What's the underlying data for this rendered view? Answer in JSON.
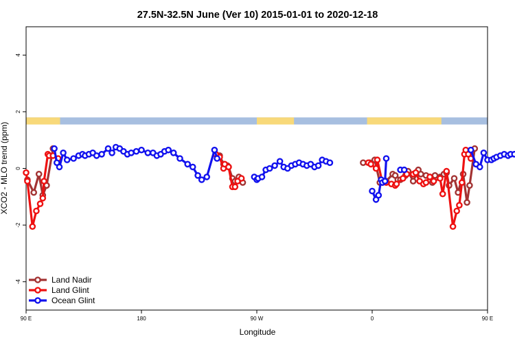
{
  "chart_data": {
    "type": "line",
    "title": "27.5N-32.5N June (Ver 10)   2015-01-01 to 2020-12-18",
    "xlabel": "Longitude",
    "ylabel": "XCO2 - MLO trend (ppm)",
    "xlim": [
      90,
      450
    ],
    "ylim": [
      -5,
      5
    ],
    "x_ticks": [
      {
        "value": 90,
        "label": "90 E"
      },
      {
        "value": 180,
        "label": "180"
      },
      {
        "value": 270,
        "label": "90 W"
      },
      {
        "value": 360,
        "label": "0"
      },
      {
        "value": 450,
        "label": "90 E"
      },
      {
        "value": 540,
        "label": "180"
      }
    ],
    "y_ticks": [
      -4,
      -2,
      0,
      2,
      4
    ],
    "land_ocean_strip": {
      "y_range": [
        1.55,
        1.8
      ],
      "land_color": "#f8d97a",
      "ocean_color": "#a7bfe0",
      "land_intervals": [
        [
          90,
          116.5
        ],
        [
          270,
          299
        ],
        [
          356,
          414
        ]
      ]
    },
    "legend": {
      "position": "bottom-left"
    },
    "series": [
      {
        "name": "Land Nadir",
        "color": "#a33333",
        "segments": [
          [
            [
              91,
              -0.4
            ],
            [
              96,
              -0.85
            ],
            [
              100,
              -0.2
            ],
            [
              103,
              -0.95
            ],
            [
              106,
              -0.6
            ],
            [
              111,
              0.7
            ]
          ],
          [
            [
              241,
              0.45
            ],
            [
              244,
              0.15
            ],
            [
              247,
              0.1
            ],
            [
              248,
              0.05
            ],
            [
              251,
              -0.35
            ],
            [
              253,
              -0.45
            ],
            [
              256,
              -0.3
            ],
            [
              259,
              -0.5
            ]
          ],
          [
            [
              353,
              0.2
            ],
            [
              358,
              0.2
            ],
            [
              362,
              0.3
            ],
            [
              366,
              -0.5
            ],
            [
              371,
              -0.45
            ],
            [
              376,
              -0.2
            ],
            [
              378,
              -0.25
            ],
            [
              380,
              -0.4
            ],
            [
              382,
              -0.4
            ],
            [
              386,
              -0.25
            ],
            [
              388,
              -0.1
            ],
            [
              392,
              -0.45
            ],
            [
              396,
              -0.05
            ],
            [
              398,
              -0.2
            ],
            [
              402,
              -0.25
            ],
            [
              405,
              -0.3
            ],
            [
              407,
              -0.5
            ],
            [
              409,
              -0.25
            ],
            [
              413,
              -0.3
            ],
            [
              416,
              -0.2
            ],
            [
              418,
              -0.15
            ],
            [
              420,
              -0.6
            ],
            [
              424,
              -0.35
            ],
            [
              427,
              -0.85
            ],
            [
              431,
              -0.2
            ],
            [
              434,
              -1.2
            ],
            [
              436,
              -0.6
            ],
            [
              440,
              0.7
            ]
          ]
        ]
      },
      {
        "name": "Land Glint",
        "color": "#ee1111",
        "segments": [
          [
            [
              90,
              -0.15
            ],
            [
              91,
              -0.45
            ],
            [
              95,
              -2.05
            ],
            [
              98,
              -1.5
            ],
            [
              101,
              -1.25
            ],
            [
              103,
              -1.05
            ],
            [
              104,
              -0.45
            ],
            [
              107,
              0.5
            ],
            [
              108,
              0.45
            ],
            [
              111,
              0.45
            ],
            [
              115,
              0.35
            ]
          ],
          [
            [
              238,
              0.5
            ],
            [
              241,
              0.4
            ],
            [
              244,
              0.0
            ],
            [
              245,
              0.15
            ],
            [
              248,
              0.05
            ],
            [
              251,
              -0.65
            ],
            [
              253,
              -0.65
            ],
            [
              255,
              -0.45
            ],
            [
              258,
              -0.35
            ]
          ],
          [
            [
              357,
              0.2
            ],
            [
              359,
              0.15
            ],
            [
              363,
              0.0
            ],
            [
              364,
              0.3
            ],
            [
              368,
              -0.5
            ],
            [
              371,
              -0.5
            ],
            [
              375,
              -0.55
            ],
            [
              378,
              -0.6
            ],
            [
              379,
              -0.55
            ],
            [
              384,
              -0.35
            ],
            [
              387,
              -0.2
            ],
            [
              392,
              -0.2
            ],
            [
              394,
              -0.15
            ],
            [
              397,
              -0.45
            ],
            [
              400,
              -0.55
            ],
            [
              402,
              -0.5
            ],
            [
              405,
              -0.3
            ],
            [
              408,
              -0.45
            ],
            [
              413,
              -0.35
            ],
            [
              415,
              -0.9
            ],
            [
              418,
              -0.1
            ],
            [
              423,
              -2.05
            ],
            [
              426,
              -1.5
            ],
            [
              428,
              -1.3
            ],
            [
              430,
              -0.5
            ],
            [
              432,
              0.5
            ],
            [
              433,
              0.65
            ],
            [
              435,
              0.5
            ],
            [
              437,
              0.35
            ]
          ]
        ]
      },
      {
        "name": "Ocean Glint",
        "color": "#1111ee",
        "segments": [
          [
            [
              112,
              0.7
            ],
            [
              114,
              0.2
            ],
            [
              116,
              0.05
            ],
            [
              119,
              0.55
            ],
            [
              122,
              0.3
            ],
            [
              127,
              0.35
            ],
            [
              131,
              0.45
            ],
            [
              134,
              0.5
            ],
            [
              136,
              0.45
            ],
            [
              139,
              0.5
            ],
            [
              142,
              0.55
            ],
            [
              145,
              0.45
            ],
            [
              149,
              0.5
            ],
            [
              154,
              0.7
            ],
            [
              157,
              0.55
            ],
            [
              160,
              0.75
            ],
            [
              163,
              0.7
            ],
            [
              166,
              0.6
            ],
            [
              169,
              0.5
            ],
            [
              172,
              0.55
            ],
            [
              176,
              0.6
            ],
            [
              180,
              0.65
            ],
            [
              185,
              0.55
            ],
            [
              189,
              0.55
            ],
            [
              192,
              0.45
            ],
            [
              195,
              0.5
            ],
            [
              198,
              0.6
            ],
            [
              201,
              0.65
            ],
            [
              205,
              0.55
            ],
            [
              210,
              0.35
            ],
            [
              216,
              0.15
            ],
            [
              220,
              0.05
            ],
            [
              224,
              -0.25
            ],
            [
              227,
              -0.4
            ],
            [
              231,
              -0.3
            ],
            [
              237,
              0.65
            ],
            [
              239,
              0.35
            ]
          ],
          [
            [
              268,
              -0.3
            ],
            [
              270,
              -0.4
            ],
            [
              271,
              -0.35
            ],
            [
              274,
              -0.3
            ],
            [
              277,
              -0.05
            ],
            [
              280,
              0.0
            ],
            [
              284,
              0.1
            ],
            [
              288,
              0.25
            ],
            [
              291,
              0.05
            ],
            [
              294,
              0.0
            ],
            [
              297,
              0.1
            ],
            [
              300,
              0.15
            ],
            [
              303,
              0.2
            ],
            [
              306,
              0.15
            ],
            [
              309,
              0.1
            ],
            [
              312,
              0.15
            ],
            [
              315,
              0.05
            ],
            [
              318,
              0.1
            ],
            [
              321,
              0.3
            ],
            [
              324,
              0.25
            ],
            [
              327,
              0.2
            ]
          ],
          [
            [
              360,
              -0.8
            ],
            [
              363,
              -1.1
            ],
            [
              365,
              -0.95
            ],
            [
              367,
              -0.4
            ],
            [
              368,
              -0.5
            ],
            [
              370,
              -0.45
            ],
            [
              371,
              0.35
            ]
          ],
          [
            [
              382,
              -0.05
            ],
            [
              385,
              -0.05
            ]
          ],
          [
            [
              437,
              0.65
            ],
            [
              441,
              0.15
            ],
            [
              444,
              0.05
            ],
            [
              447,
              0.55
            ],
            [
              450,
              0.3
            ],
            [
              453,
              0.3
            ],
            [
              455,
              0.35
            ],
            [
              457,
              0.4
            ],
            [
              460,
              0.45
            ],
            [
              463,
              0.5
            ],
            [
              466,
              0.45
            ],
            [
              468,
              0.5
            ],
            [
              471,
              0.5
            ],
            [
              474,
              0.45
            ],
            [
              477,
              0.5
            ],
            [
              480,
              0.5
            ]
          ]
        ]
      }
    ]
  }
}
